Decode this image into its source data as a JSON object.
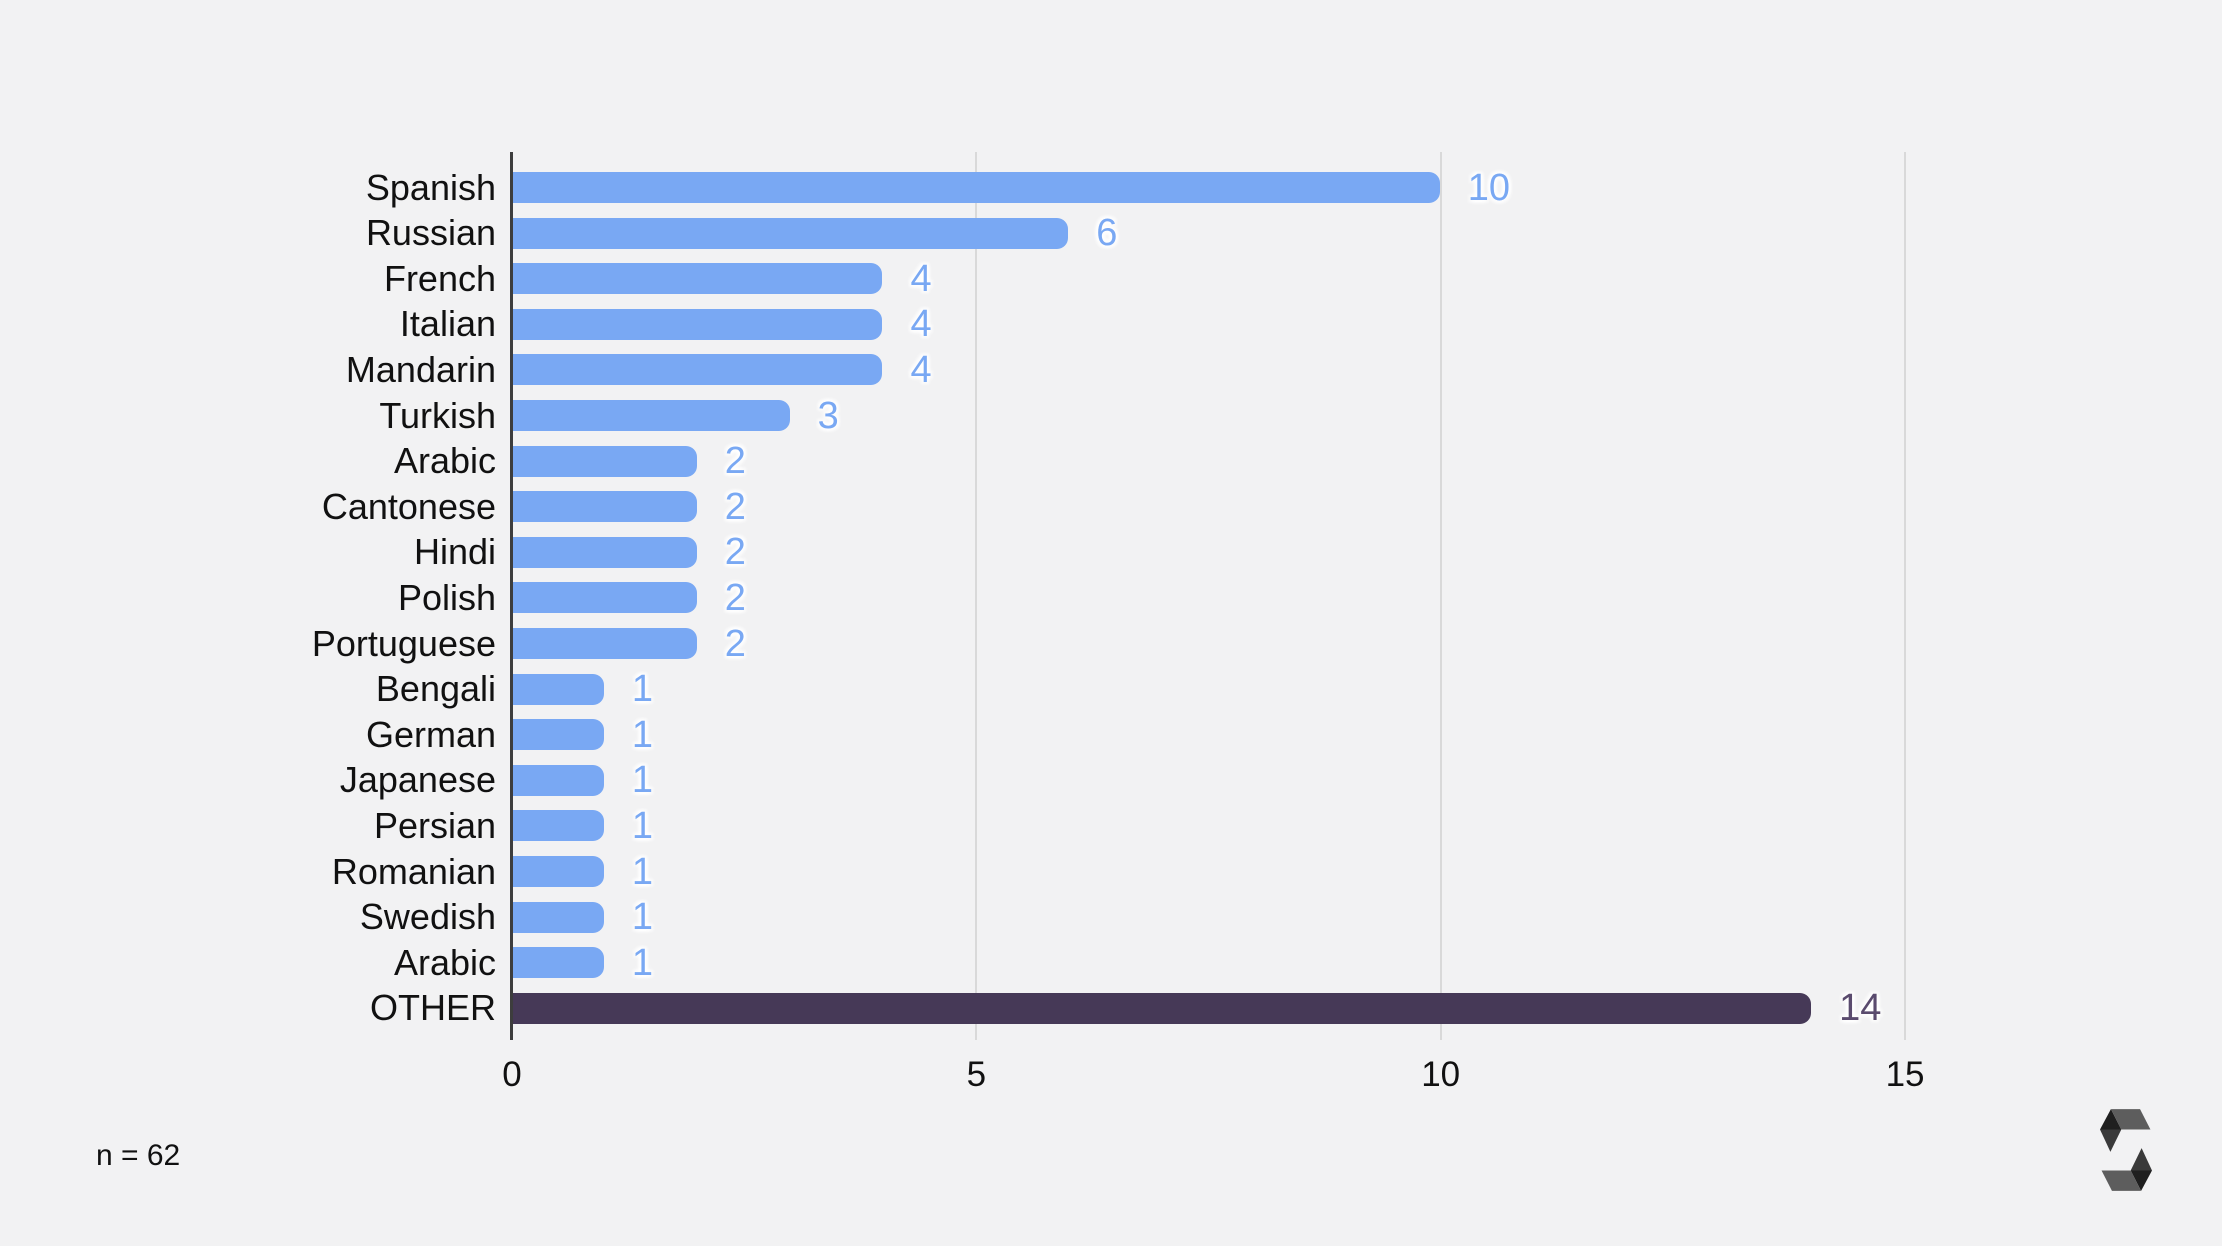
{
  "chart_data": {
    "type": "bar",
    "orientation": "horizontal",
    "title": "",
    "categories": [
      "Spanish",
      "Russian",
      "French",
      "Italian",
      "Mandarin",
      "Turkish",
      "Arabic",
      "Cantonese",
      "Hindi",
      "Polish",
      "Portuguese",
      "Bengali",
      "German",
      "Japanese",
      "Persian",
      "Romanian",
      "Swedish",
      "Arabic",
      "OTHER"
    ],
    "values": [
      10,
      6,
      4,
      4,
      4,
      3,
      2,
      2,
      2,
      2,
      2,
      1,
      1,
      1,
      1,
      1,
      1,
      1,
      14
    ],
    "highlight_index": 18,
    "x_ticks": [
      0,
      5,
      10,
      15
    ],
    "xlim": [
      0,
      15.7
    ],
    "grid": "vertical-gridlines-at-5-10-15",
    "legend": "none",
    "value_labels_shown": true,
    "annotation": "n = 62"
  },
  "colors": {
    "background": "#f2f2f3",
    "bar_primary": "#79a8f3",
    "bar_highlight": "#463957",
    "value_primary": "#79a8f3",
    "value_highlight": "#5a4b6e",
    "axis_line": "#3d3d3d",
    "gridline": "#d9d9d9",
    "text": "#111111",
    "logo_dark": "#1f1f1f",
    "logo_mid": "#3a3a3a",
    "logo_light": "#5d5d5d"
  },
  "icons": {
    "brand_logo": "solidity-s-logo"
  }
}
